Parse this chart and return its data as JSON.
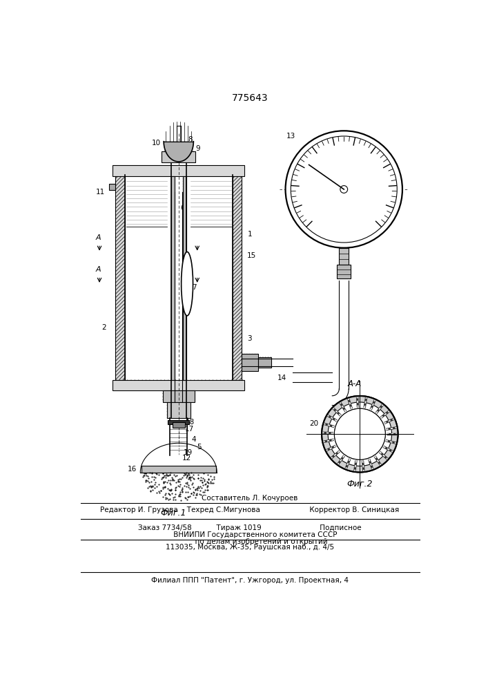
{
  "title": "775643",
  "fig1_caption": "Фиг.1",
  "fig2_caption": "Фиг.2",
  "section_label": "А-А",
  "bg_color": "#ffffff",
  "line_color": "#000000",
  "footer_lines": [
    "Составитель Л. Кочуроев",
    "Редактор И. Грузова    Техред С.Мигунова                      Корректор В. Синицкая",
    "Заказ 7734/58           Тираж 1019                          Подписное",
    "     ВНИИПИ Государственного комитета СССР",
    "          по делам изобретений и открытий",
    "113035, Москва, Ж-35, Раушская наб., д. 4/5",
    "Филиал ППП \"Патент\", г. Ужгород, ул. Проектная, 4"
  ]
}
